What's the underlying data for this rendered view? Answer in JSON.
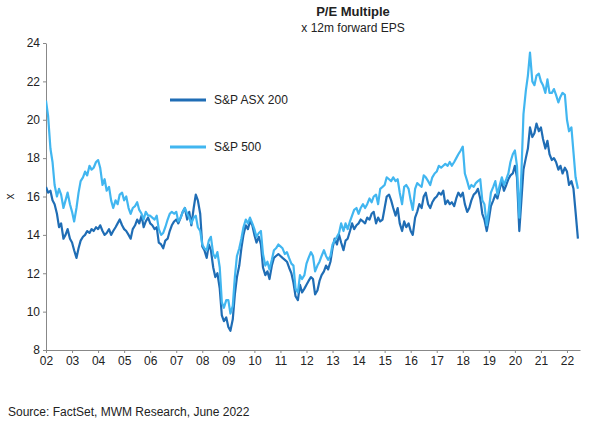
{
  "chart_data": {
    "type": "line",
    "title": "P/E Multiple",
    "subtitle": "x 12m forward EPS",
    "y_label": "x",
    "source": "Source: FactSet, MWM Research, June 2022",
    "legend": "upper left",
    "xlim": [
      2002,
      2022.5
    ],
    "xticks": [
      {
        "value": 2002,
        "label": "02"
      },
      {
        "value": 2003,
        "label": "03"
      },
      {
        "value": 2004,
        "label": "04"
      },
      {
        "value": 2005,
        "label": "05"
      },
      {
        "value": 2006,
        "label": "06"
      },
      {
        "value": 2007,
        "label": "07"
      },
      {
        "value": 2008,
        "label": "08"
      },
      {
        "value": 2009,
        "label": "09"
      },
      {
        "value": 2010,
        "label": "10"
      },
      {
        "value": 2011,
        "label": "11"
      },
      {
        "value": 2012,
        "label": "12"
      },
      {
        "value": 2013,
        "label": "13"
      },
      {
        "value": 2014,
        "label": "14"
      },
      {
        "value": 2015,
        "label": "15"
      },
      {
        "value": 2016,
        "label": "16"
      },
      {
        "value": 2017,
        "label": "17"
      },
      {
        "value": 2018,
        "label": "18"
      },
      {
        "value": 2019,
        "label": "19"
      },
      {
        "value": 2020,
        "label": "20"
      },
      {
        "value": 2021,
        "label": "21"
      },
      {
        "value": 2022,
        "label": "22"
      }
    ],
    "ylim": [
      8,
      24
    ],
    "yticks": [
      8,
      10,
      12,
      14,
      16,
      18,
      20,
      22,
      24
    ],
    "x": [
      2002,
      2002.08,
      2002.17,
      2002.25,
      2002.33,
      2002.42,
      2002.5,
      2002.58,
      2002.67,
      2002.75,
      2002.83,
      2002.92,
      2003,
      2003.08,
      2003.17,
      2003.25,
      2003.33,
      2003.42,
      2003.5,
      2003.58,
      2003.67,
      2003.75,
      2003.83,
      2003.92,
      2004,
      2004.08,
      2004.17,
      2004.25,
      2004.33,
      2004.42,
      2004.5,
      2004.58,
      2004.67,
      2004.75,
      2004.83,
      2004.92,
      2005,
      2005.08,
      2005.17,
      2005.25,
      2005.33,
      2005.42,
      2005.5,
      2005.58,
      2005.67,
      2005.75,
      2005.83,
      2005.92,
      2006,
      2006.08,
      2006.17,
      2006.25,
      2006.33,
      2006.42,
      2006.5,
      2006.58,
      2006.67,
      2006.75,
      2006.83,
      2006.92,
      2007,
      2007.08,
      2007.17,
      2007.25,
      2007.33,
      2007.42,
      2007.5,
      2007.58,
      2007.67,
      2007.75,
      2007.83,
      2007.92,
      2008,
      2008.08,
      2008.17,
      2008.25,
      2008.33,
      2008.42,
      2008.5,
      2008.58,
      2008.67,
      2008.75,
      2008.83,
      2008.92,
      2009,
      2009.08,
      2009.17,
      2009.25,
      2009.33,
      2009.42,
      2009.5,
      2009.58,
      2009.67,
      2009.75,
      2009.83,
      2009.92,
      2010,
      2010.08,
      2010.17,
      2010.25,
      2010.33,
      2010.42,
      2010.5,
      2010.58,
      2010.67,
      2010.75,
      2010.83,
      2010.92,
      2011,
      2011.08,
      2011.17,
      2011.25,
      2011.33,
      2011.42,
      2011.5,
      2011.58,
      2011.67,
      2011.75,
      2011.83,
      2011.92,
      2012,
      2012.08,
      2012.17,
      2012.25,
      2012.33,
      2012.42,
      2012.5,
      2012.58,
      2012.67,
      2012.75,
      2012.83,
      2012.92,
      2013,
      2013.08,
      2013.17,
      2013.25,
      2013.33,
      2013.42,
      2013.5,
      2013.58,
      2013.67,
      2013.75,
      2013.83,
      2013.92,
      2014,
      2014.08,
      2014.17,
      2014.25,
      2014.33,
      2014.42,
      2014.5,
      2014.58,
      2014.67,
      2014.75,
      2014.83,
      2014.92,
      2015,
      2015.08,
      2015.17,
      2015.25,
      2015.33,
      2015.42,
      2015.5,
      2015.58,
      2015.67,
      2015.75,
      2015.83,
      2015.92,
      2016,
      2016.08,
      2016.17,
      2016.25,
      2016.33,
      2016.42,
      2016.5,
      2016.58,
      2016.67,
      2016.75,
      2016.83,
      2016.92,
      2017,
      2017.08,
      2017.17,
      2017.25,
      2017.33,
      2017.42,
      2017.5,
      2017.58,
      2017.67,
      2017.75,
      2017.83,
      2017.92,
      2018,
      2018.08,
      2018.17,
      2018.25,
      2018.33,
      2018.42,
      2018.5,
      2018.58,
      2018.67,
      2018.75,
      2018.83,
      2018.92,
      2019,
      2019.08,
      2019.17,
      2019.25,
      2019.33,
      2019.42,
      2019.5,
      2019.58,
      2019.67,
      2019.75,
      2019.83,
      2019.92,
      2020,
      2020.08,
      2020.17,
      2020.25,
      2020.33,
      2020.42,
      2020.5,
      2020.58,
      2020.67,
      2020.75,
      2020.83,
      2020.92,
      2021,
      2021.08,
      2021.17,
      2021.25,
      2021.33,
      2021.42,
      2021.5,
      2021.58,
      2021.67,
      2021.75,
      2021.83,
      2021.92,
      2022,
      2022.08,
      2022.17,
      2022.25,
      2022.33,
      2022.42
    ],
    "series": [
      {
        "name": "S&P ASX 200",
        "color": "#1f6db5",
        "values": [
          16.5,
          16.2,
          16.3,
          15.8,
          15.6,
          15.1,
          14.4,
          14.6,
          13.8,
          14.0,
          14.3,
          13.8,
          13.6,
          13.2,
          12.8,
          13.3,
          13.7,
          13.9,
          14.0,
          14.2,
          14.1,
          14.3,
          14.2,
          14.4,
          14.3,
          14.5,
          14.2,
          14.0,
          14.1,
          14.3,
          14.0,
          14.2,
          14.4,
          14.6,
          14.8,
          14.5,
          14.3,
          14.2,
          14.0,
          13.8,
          14.3,
          14.5,
          14.8,
          14.6,
          15.0,
          14.4,
          14.7,
          14.9,
          14.6,
          14.5,
          14.3,
          14.4,
          13.6,
          13.5,
          13.3,
          13.7,
          13.8,
          14.2,
          14.5,
          14.7,
          14.8,
          14.6,
          14.9,
          15.2,
          15.4,
          14.8,
          15.2,
          14.5,
          15.4,
          16.1,
          15.8,
          15.1,
          13.4,
          13.2,
          12.8,
          13.5,
          13.2,
          12.3,
          11.8,
          12.0,
          11.2,
          9.8,
          9.5,
          9.7,
          9.2,
          9.0,
          9.6,
          10.9,
          11.8,
          12.4,
          13.3,
          14.0,
          14.5,
          14.3,
          14.7,
          14.5,
          14.0,
          13.6,
          13.9,
          13.5,
          12.3,
          11.9,
          12.1,
          11.7,
          12.4,
          12.8,
          12.9,
          13.0,
          12.9,
          12.8,
          12.7,
          12.6,
          12.3,
          12.0,
          11.5,
          10.8,
          10.6,
          11.4,
          11.0,
          11.2,
          11.4,
          11.6,
          11.8,
          11.7,
          10.9,
          11.1,
          11.6,
          11.9,
          12.1,
          12.4,
          12.2,
          12.6,
          13.3,
          13.8,
          13.5,
          14.0,
          13.6,
          13.2,
          13.7,
          13.8,
          14.2,
          14.6,
          14.3,
          14.5,
          14.6,
          14.8,
          14.7,
          14.6,
          14.9,
          14.8,
          15.1,
          15.2,
          14.6,
          14.9,
          14.7,
          14.8,
          15.4,
          16.0,
          16.1,
          15.8,
          15.4,
          15.0,
          15.4,
          14.6,
          14.2,
          14.7,
          14.4,
          14.6,
          14.2,
          14.0,
          14.9,
          15.2,
          15.6,
          15.4,
          16.0,
          16.2,
          15.6,
          15.4,
          15.7,
          15.9,
          16.0,
          16.2,
          16.1,
          16.3,
          15.6,
          15.8,
          15.6,
          15.7,
          15.5,
          15.9,
          16.2,
          16.0,
          16.2,
          15.6,
          15.2,
          15.4,
          15.8,
          16.1,
          16.2,
          16.4,
          15.9,
          15.1,
          14.8,
          14.2,
          14.8,
          15.5,
          15.8,
          16.1,
          15.9,
          16.4,
          16.8,
          16.3,
          16.6,
          16.9,
          17.1,
          17.2,
          17.6,
          17.0,
          14.2,
          15.8,
          17.4,
          18.0,
          18.5,
          19.6,
          19.1,
          19.3,
          19.8,
          19.4,
          19.6,
          19.0,
          18.5,
          18.9,
          18.2,
          17.9,
          18.0,
          17.8,
          17.4,
          17.6,
          17.2,
          17.5,
          17.3,
          16.6,
          16.8,
          16.4,
          15.2,
          13.8
        ]
      },
      {
        "name": "S&P 500",
        "color": "#41b6f0",
        "values": [
          21.0,
          20.2,
          18.5,
          17.8,
          16.6,
          16.0,
          16.4,
          16.1,
          15.4,
          15.8,
          16.2,
          15.6,
          15.2,
          14.7,
          15.4,
          16.2,
          16.8,
          17.0,
          17.3,
          17.1,
          17.6,
          17.4,
          17.5,
          17.8,
          17.9,
          17.5,
          16.6,
          16.9,
          16.3,
          16.5,
          15.8,
          15.4,
          15.8,
          15.6,
          16.1,
          16.2,
          15.8,
          16.0,
          15.4,
          15.1,
          15.4,
          15.5,
          15.7,
          15.3,
          15.1,
          14.8,
          15.2,
          15.0,
          15.0,
          14.9,
          14.8,
          15.0,
          14.3,
          14.0,
          14.1,
          14.4,
          14.8,
          15.1,
          15.2,
          15.1,
          15.2,
          14.7,
          14.9,
          15.2,
          15.4,
          15.1,
          14.9,
          14.6,
          14.9,
          15.0,
          14.4,
          14.2,
          13.5,
          13.3,
          13.2,
          13.7,
          13.9,
          13.0,
          12.8,
          13.1,
          12.3,
          10.5,
          10.2,
          10.6,
          10.6,
          9.9,
          10.3,
          11.8,
          12.9,
          13.3,
          13.8,
          14.4,
          14.8,
          14.6,
          14.9,
          14.6,
          14.3,
          13.9,
          14.1,
          14.2,
          13.0,
          12.4,
          12.6,
          12.2,
          12.7,
          13.2,
          13.3,
          13.5,
          13.4,
          13.3,
          13.0,
          13.1,
          12.8,
          12.5,
          12.4,
          11.2,
          11.0,
          11.9,
          11.7,
          11.9,
          12.5,
          12.8,
          13.1,
          12.9,
          12.1,
          12.4,
          12.6,
          12.9,
          13.2,
          12.9,
          12.7,
          12.9,
          13.5,
          13.7,
          13.9,
          14.1,
          14.6,
          14.2,
          14.6,
          14.3,
          14.7,
          15.0,
          15.3,
          15.4,
          15.1,
          15.4,
          15.6,
          15.4,
          15.6,
          15.9,
          15.7,
          16.0,
          16.1,
          15.6,
          16.4,
          16.5,
          16.6,
          17.0,
          16.9,
          16.8,
          17.0,
          16.8,
          16.9,
          16.2,
          15.6,
          16.5,
          16.6,
          16.4,
          15.8,
          15.3,
          16.4,
          16.7,
          16.6,
          16.5,
          17.1,
          17.0,
          16.8,
          16.6,
          17.0,
          17.2,
          17.3,
          17.6,
          17.5,
          17.6,
          17.7,
          17.6,
          17.8,
          17.6,
          17.8,
          18.0,
          18.2,
          18.4,
          18.6,
          17.2,
          16.8,
          16.4,
          16.6,
          16.5,
          16.7,
          16.8,
          16.9,
          15.8,
          15.6,
          14.5,
          15.3,
          16.2,
          16.5,
          16.8,
          16.1,
          16.6,
          17.0,
          16.6,
          16.9,
          17.2,
          17.8,
          18.2,
          18.4,
          17.6,
          14.9,
          17.2,
          20.3,
          21.5,
          22.3,
          23.5,
          22.0,
          21.8,
          22.3,
          22.4,
          22.0,
          21.8,
          21.4,
          22.1,
          21.4,
          21.4,
          21.6,
          21.3,
          20.9,
          21.2,
          21.4,
          21.3,
          20.0,
          19.4,
          19.6,
          18.3,
          17.0,
          16.4
        ]
      }
    ]
  }
}
